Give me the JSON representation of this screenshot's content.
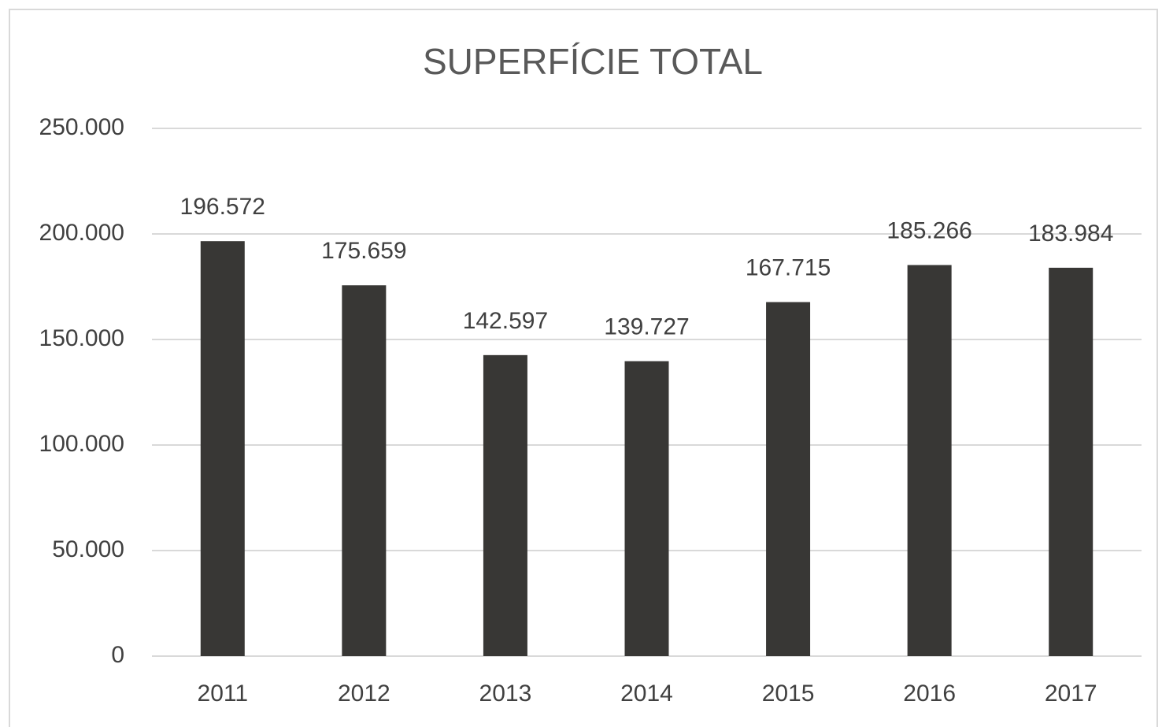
{
  "chart_data": {
    "type": "bar",
    "title": "SUPERFÍCIE TOTAL",
    "categories": [
      "2011",
      "2012",
      "2013",
      "2014",
      "2015",
      "2016",
      "2017"
    ],
    "values": [
      196572,
      175659,
      142597,
      139727,
      167715,
      185266,
      183984
    ],
    "value_labels": [
      "196.572",
      "175.659",
      "142.597",
      "139.727",
      "167.715",
      "185.266",
      "183.984"
    ],
    "color": "#383735",
    "ylim": [
      0,
      250000
    ],
    "yticks": [
      0,
      {
        "value": 50000,
        "label": "50.000"
      },
      {
        "value": 100000,
        "label": "100.000"
      },
      {
        "value": 150000,
        "label": "150.000"
      },
      {
        "value": 200000,
        "label": "200.000"
      },
      {
        "value": 250000,
        "label": "250.000"
      }
    ],
    "grid": true
  }
}
